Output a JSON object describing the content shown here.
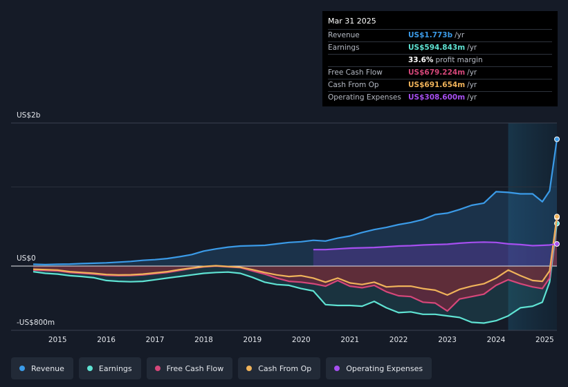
{
  "tooltip": {
    "date": "Mar 31 2025",
    "rows": [
      {
        "label": "Revenue",
        "value": "US$1.773b",
        "unit": "/yr",
        "color": "#3b9be8"
      },
      {
        "label": "Earnings",
        "value": "US$594.843m",
        "unit": "/yr",
        "color": "#5fe3d3"
      },
      {
        "label": "",
        "value": "33.6%",
        "unit": "profit margin",
        "color": "#ffffff"
      },
      {
        "label": "Free Cash Flow",
        "value": "US$679.224m",
        "unit": "/yr",
        "color": "#d6477a"
      },
      {
        "label": "Cash From Op",
        "value": "US$691.654m",
        "unit": "/yr",
        "color": "#f0b35a"
      },
      {
        "label": "Operating Expenses",
        "value": "US$308.600m",
        "unit": "/yr",
        "color": "#a64ff0"
      }
    ]
  },
  "legend": [
    {
      "label": "Revenue",
      "color": "#3b9be8"
    },
    {
      "label": "Earnings",
      "color": "#5fe3d3"
    },
    {
      "label": "Free Cash Flow",
      "color": "#d6477a"
    },
    {
      "label": "Cash From Op",
      "color": "#f0b35a"
    },
    {
      "label": "Operating Expenses",
      "color": "#a64ff0"
    }
  ],
  "chart_data": {
    "type": "line",
    "title": "",
    "ylabel": "",
    "y_tick_labels": [
      "US$2b",
      "US$0",
      "-US$800m"
    ],
    "ylim": [
      -800,
      2000
    ],
    "xlim": [
      2014.5,
      2025.25
    ],
    "x_tick_labels": [
      "2015",
      "2016",
      "2017",
      "2018",
      "2019",
      "2020",
      "2021",
      "2022",
      "2023",
      "2024",
      "2025"
    ],
    "highlight_range": [
      2024.25,
      2025.25
    ],
    "series": [
      {
        "name": "Revenue",
        "color": "#3b9be8",
        "x": [
          2014.5,
          2014.75,
          2015,
          2015.25,
          2015.5,
          2015.75,
          2016,
          2016.25,
          2016.5,
          2016.75,
          2017,
          2017.25,
          2017.5,
          2017.75,
          2018,
          2018.25,
          2018.5,
          2018.75,
          2019,
          2019.25,
          2019.5,
          2019.75,
          2020,
          2020.25,
          2020.5,
          2020.75,
          2021,
          2021.25,
          2021.5,
          2021.75,
          2022,
          2022.25,
          2022.5,
          2022.75,
          2023,
          2023.25,
          2023.5,
          2023.75,
          2024,
          2024.25,
          2024.5,
          2024.75,
          2024.95,
          2025.1,
          2025.25
        ],
        "y": [
          25,
          20,
          25,
          28,
          35,
          40,
          45,
          55,
          65,
          80,
          90,
          105,
          130,
          160,
          210,
          240,
          265,
          280,
          285,
          290,
          310,
          330,
          340,
          360,
          350,
          390,
          420,
          470,
          510,
          540,
          580,
          610,
          650,
          720,
          740,
          790,
          850,
          880,
          1040,
          1030,
          1010,
          1010,
          900,
          1050,
          1773
        ]
      },
      {
        "name": "Earnings",
        "color": "#5fe3d3",
        "x": [
          2014.5,
          2014.75,
          2015,
          2015.25,
          2015.5,
          2015.75,
          2016,
          2016.25,
          2016.5,
          2016.75,
          2017,
          2017.25,
          2017.5,
          2017.75,
          2018,
          2018.25,
          2018.5,
          2018.75,
          2019,
          2019.25,
          2019.5,
          2019.75,
          2020,
          2020.25,
          2020.5,
          2020.75,
          2021,
          2021.25,
          2021.5,
          2021.75,
          2022,
          2022.25,
          2022.5,
          2022.75,
          2023,
          2023.25,
          2023.5,
          2023.75,
          2024,
          2024.25,
          2024.5,
          2024.75,
          2024.95,
          2025.1,
          2025.25
        ],
        "y": [
          -70,
          -90,
          -100,
          -120,
          -130,
          -145,
          -180,
          -190,
          -195,
          -190,
          -170,
          -150,
          -130,
          -110,
          -90,
          -80,
          -75,
          -90,
          -140,
          -200,
          -230,
          -240,
          -280,
          -310,
          -480,
          -490,
          -490,
          -500,
          -440,
          -520,
          -580,
          -570,
          -600,
          -600,
          -620,
          -640,
          -700,
          -710,
          -680,
          -620,
          -520,
          -500,
          -450,
          -200,
          595
        ]
      },
      {
        "name": "Free Cash Flow",
        "color": "#d6477a",
        "x": [
          2014.5,
          2014.75,
          2015,
          2015.25,
          2015.5,
          2015.75,
          2016,
          2016.25,
          2016.5,
          2016.75,
          2017,
          2017.25,
          2017.5,
          2017.75,
          2018,
          2018.25,
          2018.5,
          2018.75,
          2019,
          2019.25,
          2019.5,
          2019.75,
          2020,
          2020.25,
          2020.5,
          2020.75,
          2021,
          2021.25,
          2021.5,
          2021.75,
          2022,
          2022.25,
          2022.5,
          2022.75,
          2023,
          2023.25,
          2023.5,
          2023.75,
          2024,
          2024.25,
          2024.5,
          2024.75,
          2024.95,
          2025.1,
          2025.25
        ],
        "y": [
          -50,
          -55,
          -60,
          -80,
          -90,
          -100,
          -115,
          -120,
          -118,
          -110,
          -95,
          -80,
          -55,
          -30,
          -10,
          0,
          -10,
          -20,
          -60,
          -100,
          -150,
          -190,
          -200,
          -220,
          -250,
          -180,
          -250,
          -270,
          -240,
          -320,
          -370,
          -380,
          -450,
          -460,
          -560,
          -410,
          -380,
          -350,
          -240,
          -170,
          -220,
          -260,
          -280,
          -150,
          679
        ]
      },
      {
        "name": "Cash From Op",
        "color": "#f0b35a",
        "x": [
          2014.5,
          2014.75,
          2015,
          2015.25,
          2015.5,
          2015.75,
          2016,
          2016.25,
          2016.5,
          2016.75,
          2017,
          2017.25,
          2017.5,
          2017.75,
          2018,
          2018.25,
          2018.5,
          2018.75,
          2019,
          2019.25,
          2019.5,
          2019.75,
          2020,
          2020.25,
          2020.5,
          2020.75,
          2021,
          2021.25,
          2021.5,
          2021.75,
          2022,
          2022.25,
          2022.5,
          2022.75,
          2023,
          2023.25,
          2023.5,
          2023.75,
          2024,
          2024.25,
          2024.5,
          2024.75,
          2024.95,
          2025.1,
          2025.25
        ],
        "y": [
          -40,
          -45,
          -50,
          -70,
          -80,
          -90,
          -105,
          -110,
          -108,
          -100,
          -85,
          -70,
          -45,
          -25,
          -5,
          5,
          -5,
          -15,
          -45,
          -80,
          -110,
          -130,
          -120,
          -150,
          -200,
          -150,
          -210,
          -230,
          -200,
          -260,
          -250,
          -250,
          -280,
          -300,
          -360,
          -290,
          -250,
          -220,
          -150,
          -50,
          -120,
          -180,
          -190,
          -60,
          692
        ]
      },
      {
        "name": "Operating Expenses",
        "color": "#a64ff0",
        "x": [
          2020.25,
          2020.5,
          2020.75,
          2021,
          2021.25,
          2021.5,
          2021.75,
          2022,
          2022.25,
          2022.5,
          2022.75,
          2023,
          2023.25,
          2023.5,
          2023.75,
          2024,
          2024.25,
          2024.5,
          2024.75,
          2024.95,
          2025.1,
          2025.25
        ],
        "y": [
          230,
          230,
          240,
          250,
          255,
          260,
          270,
          280,
          285,
          295,
          300,
          305,
          320,
          330,
          335,
          330,
          310,
          300,
          285,
          290,
          295,
          309
        ]
      }
    ]
  }
}
